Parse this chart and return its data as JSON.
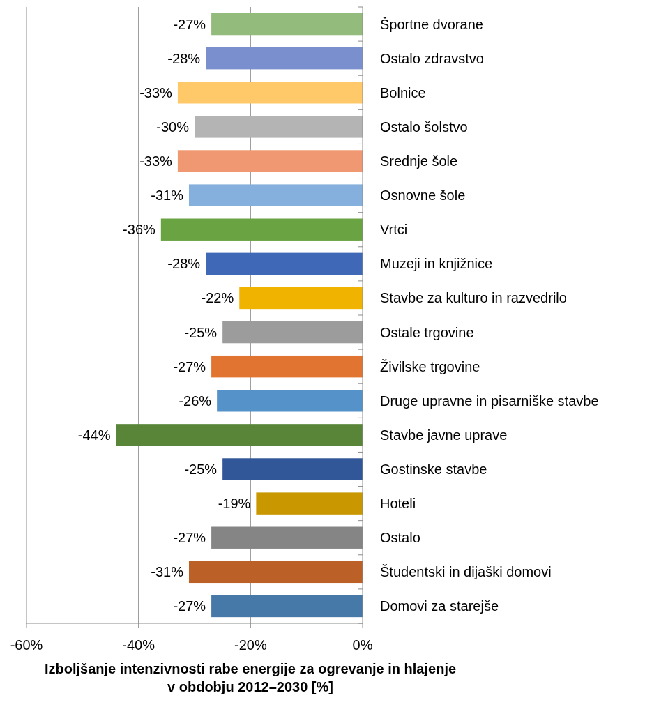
{
  "chart_data": {
    "type": "bar",
    "orientation": "horizontal",
    "xlabel": "Izboljšanje intenzivnosti rabe energije za ogrevanje in hlajenje\nv obdobju 2012–2030 [%]",
    "categories": [
      "Športne dvorane",
      "Ostalo zdravstvo",
      "Bolnice",
      "Ostalo šolstvo",
      "Srednje šole",
      "Osnovne šole",
      "Vrtci",
      "Muzeji in knjižnice",
      "Stavbe za kulturo in razvedrilo",
      "Ostale trgovine",
      "Živilske trgovine",
      "Druge upravne in pisarniške stavbe",
      "Stavbe javne uprave",
      "Gostinske stavbe",
      "Hoteli",
      "Ostalo",
      "Študentski in dijaški domovi",
      "Domovi za starejše"
    ],
    "values": [
      -27,
      -28,
      -33,
      -30,
      -33,
      -31,
      -36,
      -28,
      -22,
      -25,
      -27,
      -26,
      -44,
      -25,
      -19,
      -27,
      -31,
      -27
    ],
    "value_labels": [
      "-27%",
      "-28%",
      "-33%",
      "-30%",
      "-33%",
      "-31%",
      "-36%",
      "-28%",
      "-22%",
      "-25%",
      "-27%",
      "-26%",
      "-44%",
      "-25%",
      "-19%",
      "-27%",
      "-31%",
      "-27%"
    ],
    "colors": [
      "#93bb7b",
      "#7a8fcd",
      "#ffc869",
      "#b4b4b4",
      "#f09872",
      "#85afdc",
      "#69a342",
      "#3f68b6",
      "#efb300",
      "#9c9c9c",
      "#e07430",
      "#5592c9",
      "#588537",
      "#325799",
      "#c99700",
      "#858585",
      "#bb6026",
      "#4779a8"
    ],
    "xlim": [
      -60,
      0
    ],
    "xticks": [
      {
        "value": -60,
        "label": "-60%"
      },
      {
        "value": -40,
        "label": "-40%"
      },
      {
        "value": -20,
        "label": "-20%"
      },
      {
        "value": 0,
        "label": "0%"
      }
    ],
    "grid": "x"
  }
}
